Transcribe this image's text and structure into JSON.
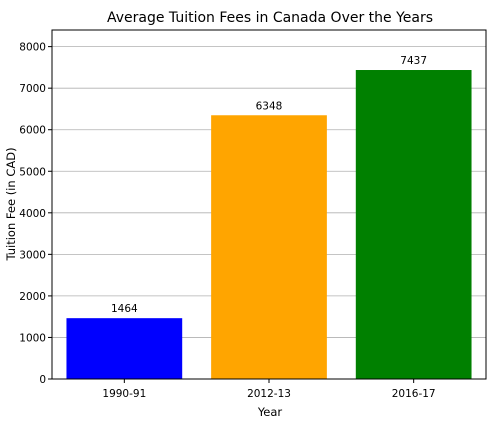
{
  "chart_data": {
    "type": "bar",
    "title": "Average Tuition Fees in Canada Over the Years",
    "xlabel": "Year",
    "ylabel": "Tuition Fee (in CAD)",
    "categories": [
      "1990-91",
      "2012-13",
      "2016-17"
    ],
    "values": [
      1464,
      6348,
      7437
    ],
    "value_labels": [
      "1464",
      "6348",
      "7437"
    ],
    "colors": [
      "#0000ff",
      "#ffa500",
      "#008000"
    ],
    "ylim": [
      0,
      8400
    ],
    "yticks": [
      0,
      1000,
      2000,
      3000,
      4000,
      5000,
      6000,
      7000,
      8000
    ],
    "ytick_labels": [
      "0",
      "1000",
      "2000",
      "3000",
      "4000",
      "5000",
      "6000",
      "7000",
      "8000"
    ],
    "grid": "horizontal",
    "legend": "none"
  }
}
